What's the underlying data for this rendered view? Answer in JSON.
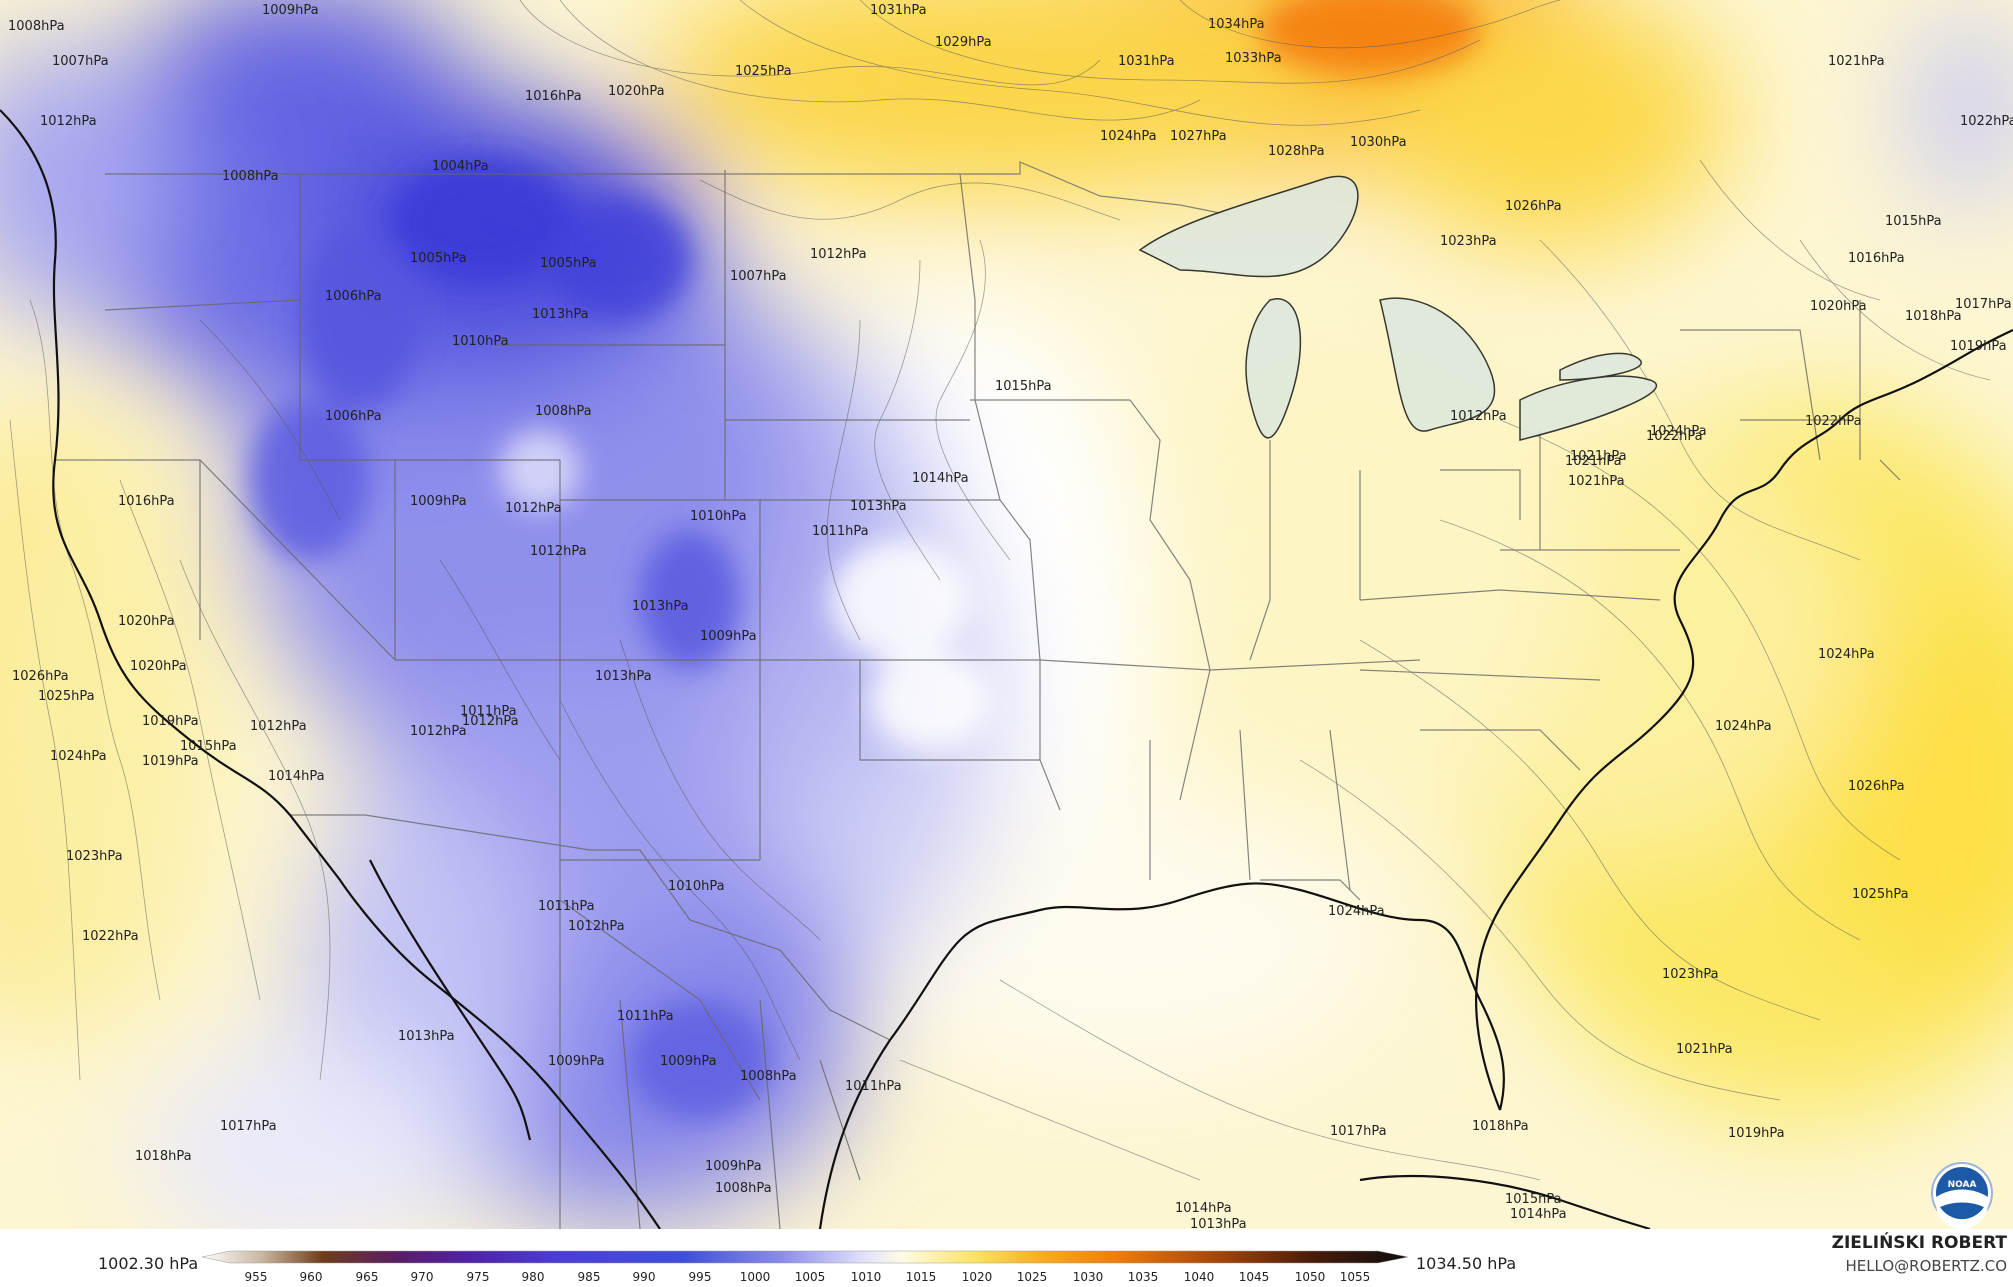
{
  "colors": {
    "deep_low": "#3636d8",
    "mid_low": "#7b7bea",
    "light_low": "#c6c6f5",
    "neutral": "#ffffff",
    "light_high": "#fbf3c4",
    "mid_high": "#fbe35a",
    "high": "#f9a11a",
    "very_high": "#f57e0b"
  },
  "contour_labels": [
    "1009hPa",
    "1008hPa",
    "1007hPa",
    "1012hPa",
    "1016hPa",
    "1020hPa",
    "1025hPa",
    "1031hPa",
    "1029hPa",
    "1034hPa",
    "1033hPa",
    "1031hPa",
    "1024hPa",
    "1027hPa",
    "1028hPa",
    "1030hPa",
    "1026hPa",
    "1023hPa",
    "1021hPa",
    "1022hPa",
    "1004hPa",
    "1008hPa",
    "1012hPa",
    "1005hPa",
    "1006hPa",
    "1005hPa",
    "1010hPa",
    "1013hPa",
    "1007hPa",
    "1015hPa",
    "1008hPa",
    "1006hPa",
    "1014hPa",
    "1013hPa",
    "1011hPa",
    "1010hPa",
    "1009hPa",
    "1012hPa",
    "1012hPa",
    "1016hPa",
    "1013hPa",
    "1013hPa",
    "1009hPa",
    "1021hPa",
    "1026hPa",
    "1025hPa",
    "1024hPa",
    "1023hPa",
    "1022hPa",
    "1020hPa",
    "1019hPa",
    "1015hPa",
    "1014hPa",
    "1012hPa",
    "1011hPa",
    "1012hPa",
    "1012hPa",
    "1011hPa",
    "1010hPa",
    "1012hPa",
    "1011hPa",
    "1013hPa",
    "1009hPa",
    "1009hPa",
    "1008hPa",
    "1011hPa",
    "1009hPa",
    "1008hPa",
    "1018hPa",
    "1017hPa",
    "1014hPa",
    "1013hPa",
    "1015hPa",
    "1014hPa",
    "1017hPa",
    "1018hPa",
    "1019hPa",
    "1021hPa",
    "1023hPa",
    "1024hPa",
    "1025hPa",
    "1026hPa",
    "1024hPa",
    "1024hPa",
    "1022hPa",
    "1021hPa",
    "1024hPa",
    "1022hPa",
    "1019hPa",
    "1017hPa",
    "1018hPa",
    "1020hPa",
    "1016hPa",
    "1015hPa",
    "1021hPa",
    "1012hPa",
    "1020hPa",
    "1019hPa"
  ],
  "legend": {
    "min_label": "1002.30 hPa",
    "max_label": "1034.50 hPa",
    "ticks": [
      "955",
      "960",
      "965",
      "970",
      "975",
      "980",
      "985",
      "990",
      "995",
      "1000",
      "1005",
      "1010",
      "1015",
      "1020",
      "1025",
      "1030",
      "1035",
      "1040",
      "1045",
      "1050",
      "1055"
    ]
  },
  "credit": {
    "name": "ZIELIŃSKI ROBERT",
    "email": "HELLO@ROBERTZ.CO"
  },
  "logo": {
    "text": "NOAA",
    "icon": "noaa-logo-icon"
  }
}
